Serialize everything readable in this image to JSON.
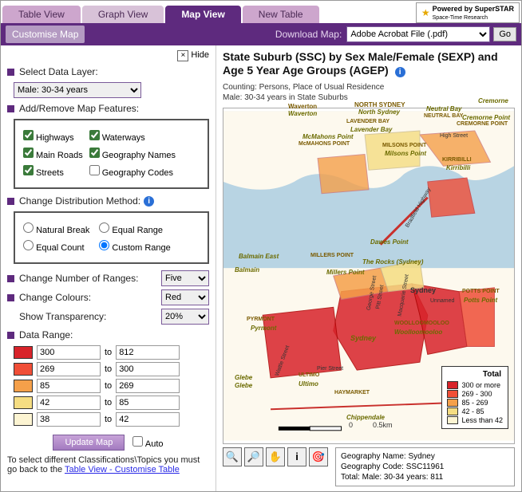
{
  "tabs": {
    "table": "Table View",
    "graph": "Graph View",
    "map": "Map View",
    "new": "New Table"
  },
  "poweredby": {
    "label": "Powered by SuperSTAR",
    "sub": "Space-Time Research"
  },
  "purplebar": {
    "customise": "Customise Map",
    "download_label": "Download Map:",
    "download_value": "Adobe Acrobat File (.pdf)",
    "go": "Go"
  },
  "left": {
    "hide": "Hide",
    "select_data_layer": "Select Data Layer:",
    "data_layer_value": "Male: 30-34 years",
    "add_remove_features": "Add/Remove Map Features:",
    "features": {
      "highways": "Highways",
      "waterways": "Waterways",
      "mainroads": "Main Roads",
      "geonames": "Geography Names",
      "streets": "Streets",
      "geocodes": "Geography Codes"
    },
    "change_dist": "Change Distribution Method:",
    "dist": {
      "natural": "Natural Break",
      "equalrange": "Equal Range",
      "equalcount": "Equal Count",
      "custom": "Custom Range"
    },
    "change_num_ranges": "Change Number of Ranges:",
    "num_ranges_value": "Five",
    "change_colours": "Change Colours:",
    "colours_value": "Red",
    "show_transparency": "Show Transparency:",
    "transparency_value": "20%",
    "data_range": "Data Range:",
    "ranges": [
      {
        "color": "#d8232a",
        "from": "300",
        "to": "812"
      },
      {
        "color": "#f04e37",
        "from": "269",
        "to": "300"
      },
      {
        "color": "#f5a04a",
        "from": "85",
        "to": "269"
      },
      {
        "color": "#f5dd82",
        "from": "42",
        "to": "85"
      },
      {
        "color": "#fcf4d2",
        "from": "38",
        "to": "42"
      }
    ],
    "update": "Update Map",
    "auto": "Auto",
    "footnote_pre": "To select different Classifications\\Topics you must go back to the ",
    "footnote_link": "Table View - Customise Table"
  },
  "right": {
    "title": "State Suburb (SSC) by Sex Male/Female (SEXP) and Age 5 Year Age Groups (AGEP)",
    "sub1": "Counting: Persons, Place of Usual Residence",
    "sub2": "Male: 30-34 years in State Suburbs",
    "geo": {
      "name_label": "Geography Name:",
      "name": "Sydney",
      "code_label": "Geography Code:",
      "code": "SSC11961",
      "total_label": "Total: Male: 30-34 years:",
      "total": "811"
    },
    "legend_title": "Total",
    "legend": [
      {
        "color": "#d8232a",
        "label": "300 or more"
      },
      {
        "color": "#f04e37",
        "label": "269 - 300"
      },
      {
        "color": "#f5a04a",
        "label": "85 - 269"
      },
      {
        "color": "#f5dd82",
        "label": "42 - 85"
      },
      {
        "color": "#fcf4d2",
        "label": "Less than 42"
      }
    ],
    "scale": "0.5km",
    "map_labels": {
      "waverton": "Waverton",
      "waverton_it": "Waverton",
      "northsydney": "NORTH SYDNEY",
      "northsydney_it": "North Sydney",
      "cremorne": "Cremorne",
      "cremorne_it": "Cremorne Point",
      "cremorne_pt": "CREMORNE POINT",
      "neutral": "Neutral Bay",
      "neutral_cap": "NEUTRAL BAY",
      "lavender": "LAVENDER BAY",
      "lavender_it": "Lavender Bay",
      "mcmahons": "McMahons Point",
      "mcmahons_cap": "McMAHONS POINT",
      "milsons": "MILSONS POINT",
      "milsons_it": "Milsons Point",
      "kirribilli": "KIRRIBILLI",
      "kirribilli_it": "Kirribilli",
      "highst": "High Street",
      "balmain": "Balmain East",
      "balmain_it": "Balmain",
      "dawes": "Dawes Point",
      "millers": "MILLERS POINT",
      "millers_it": "Millers Point",
      "rocks": "The Rocks (Sydney)",
      "sydney": "Sydney",
      "sydney_it": "Sydney",
      "potts": "POTTS POINT",
      "potts_it": "Potts Point",
      "pyrmont": "PYRMONT",
      "pyrmont_it": "Pyrmont",
      "wool": "WOOLLOOMOOLOO",
      "wool_it": "Woolloomooloo",
      "ultimo": "ULTIMO",
      "ultimo_it": "Ultimo",
      "hay": "HAYMARKET",
      "glebe": "Glebe",
      "glebe_it": "Glebe",
      "chip": "Chippendale",
      "pier": "Pier Street",
      "george": "George Street",
      "pitt": "Pitt Street",
      "mac": "Macquarie Street",
      "unnamed": "Unnamed",
      "wattle": "Wattle Street",
      "bradfield": "Bradfield Highway"
    }
  }
}
